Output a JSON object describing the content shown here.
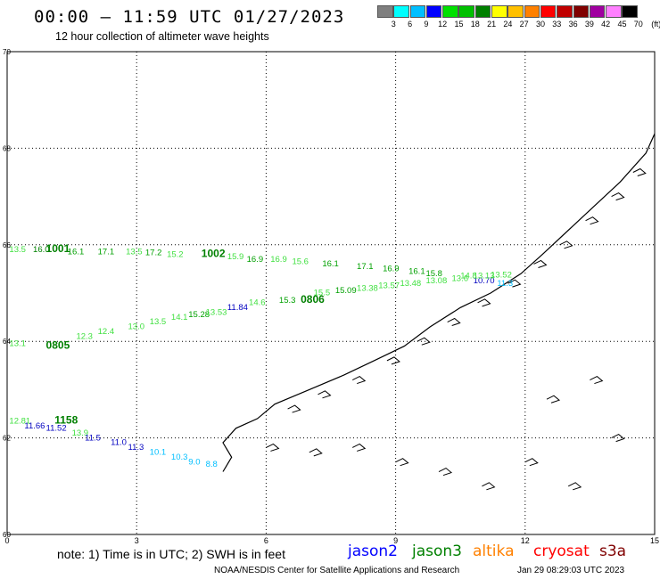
{
  "header": {
    "title": "00:00 – 11:59 UTC 01/27/2023",
    "subtitle": "12 hour collection of altimeter wave heights"
  },
  "colorbar": {
    "colors": [
      "#7f7f7f",
      "#00ffff",
      "#00bfff",
      "#0000ff",
      "#00e000",
      "#00c000",
      "#008000",
      "#ffff00",
      "#ffc000",
      "#ff8000",
      "#ff0000",
      "#c00000",
      "#800000",
      "#a000a0",
      "#ff80ff",
      "#000000"
    ],
    "labels": [
      "3",
      "6",
      "9",
      "12",
      "15",
      "18",
      "21",
      "24",
      "27",
      "30",
      "33",
      "36",
      "39",
      "42",
      "45",
      "70"
    ],
    "unit": "(ft)"
  },
  "axes": {
    "x_ticks": [
      "0",
      "3",
      "6",
      "9",
      "12",
      "15"
    ],
    "y_ticks": [
      "70",
      "68",
      "66",
      "64",
      "62",
      "60"
    ]
  },
  "chart_data": {
    "type": "scatter",
    "xlim": [
      0,
      15
    ],
    "ylim": [
      60,
      70
    ],
    "grid": true,
    "tracks": [
      {
        "name": "track-1",
        "passes": [
          "1001",
          "1002"
        ],
        "labels": [
          {
            "lon": 0.05,
            "lat": 65.85,
            "text": "13.5",
            "color": "#40e040"
          },
          {
            "lon": 0.6,
            "lat": 65.85,
            "text": "16.0",
            "color": "#008000"
          },
          {
            "lon": 0.9,
            "lat": 65.85,
            "text": "1001",
            "color": "#008000"
          },
          {
            "lon": 1.4,
            "lat": 65.8,
            "text": "16.1",
            "color": "#00a000"
          },
          {
            "lon": 2.1,
            "lat": 65.8,
            "text": "17.1",
            "color": "#00a000"
          },
          {
            "lon": 2.75,
            "lat": 65.8,
            "text": "13.5",
            "color": "#40e040"
          },
          {
            "lon": 3.2,
            "lat": 65.78,
            "text": "17.2",
            "color": "#00a000"
          },
          {
            "lon": 3.7,
            "lat": 65.75,
            "text": "15.2",
            "color": "#40e040"
          },
          {
            "lon": 4.5,
            "lat": 65.75,
            "text": "1002",
            "color": "#008000"
          },
          {
            "lon": 5.1,
            "lat": 65.7,
            "text": "15.9",
            "color": "#40e040"
          },
          {
            "lon": 5.55,
            "lat": 65.65,
            "text": "16.9",
            "color": "#00a000"
          },
          {
            "lon": 6.1,
            "lat": 65.65,
            "text": "16.9",
            "color": "#40e040"
          },
          {
            "lon": 6.6,
            "lat": 65.6,
            "text": "15.6",
            "color": "#40e040"
          },
          {
            "lon": 7.3,
            "lat": 65.55,
            "text": "16.1",
            "color": "#00a000"
          },
          {
            "lon": 8.1,
            "lat": 65.5,
            "text": "17.1",
            "color": "#00a000"
          },
          {
            "lon": 8.7,
            "lat": 65.45,
            "text": "16.9",
            "color": "#00a000"
          },
          {
            "lon": 9.3,
            "lat": 65.4,
            "text": "16.1",
            "color": "#00a000"
          },
          {
            "lon": 9.7,
            "lat": 65.35,
            "text": "15.8",
            "color": "#00a000"
          },
          {
            "lon": 10.5,
            "lat": 65.3,
            "text": "14.8",
            "color": "#40e040"
          },
          {
            "lon": 10.8,
            "lat": 65.2,
            "text": "10.70",
            "color": "#0000c0"
          },
          {
            "lon": 11.35,
            "lat": 65.15,
            "text": "11.3",
            "color": "#00bfff"
          }
        ]
      },
      {
        "name": "track-2",
        "passes": [
          "0805",
          "0806"
        ],
        "labels": [
          {
            "lon": 0.05,
            "lat": 63.9,
            "text": "13.1",
            "color": "#40e040"
          },
          {
            "lon": 0.9,
            "lat": 63.85,
            "text": "0805",
            "color": "#008000"
          },
          {
            "lon": 1.6,
            "lat": 64.05,
            "text": "12.3",
            "color": "#40e040"
          },
          {
            "lon": 2.1,
            "lat": 64.15,
            "text": "12.4",
            "color": "#40e040"
          },
          {
            "lon": 2.8,
            "lat": 64.25,
            "text": "13.0",
            "color": "#40e040"
          },
          {
            "lon": 3.3,
            "lat": 64.35,
            "text": "13.5",
            "color": "#40e040"
          },
          {
            "lon": 3.8,
            "lat": 64.45,
            "text": "14.1",
            "color": "#40e040"
          },
          {
            "lon": 4.2,
            "lat": 64.5,
            "text": "15.28",
            "color": "#00a000"
          },
          {
            "lon": 4.6,
            "lat": 64.55,
            "text": "13.53",
            "color": "#40e040"
          },
          {
            "lon": 5.1,
            "lat": 64.65,
            "text": "11.84",
            "color": "#0000c0"
          },
          {
            "lon": 5.6,
            "lat": 64.75,
            "text": "14.6",
            "color": "#40e040"
          },
          {
            "lon": 6.3,
            "lat": 64.8,
            "text": "15.3",
            "color": "#00a000"
          },
          {
            "lon": 6.8,
            "lat": 64.8,
            "text": "0806",
            "color": "#008000"
          },
          {
            "lon": 7.1,
            "lat": 64.95,
            "text": "15.5",
            "color": "#40e040"
          },
          {
            "lon": 7.6,
            "lat": 65.0,
            "text": "15.09",
            "color": "#00a000"
          },
          {
            "lon": 8.1,
            "lat": 65.05,
            "text": "13.38",
            "color": "#40e040"
          },
          {
            "lon": 8.6,
            "lat": 65.1,
            "text": "13.57",
            "color": "#40e040"
          },
          {
            "lon": 9.1,
            "lat": 65.15,
            "text": "13.48",
            "color": "#40e040"
          },
          {
            "lon": 9.7,
            "lat": 65.2,
            "text": "13.08",
            "color": "#40e040"
          },
          {
            "lon": 10.3,
            "lat": 65.25,
            "text": "13.6",
            "color": "#40e040"
          },
          {
            "lon": 10.8,
            "lat": 65.3,
            "text": "13.13",
            "color": "#40e040"
          },
          {
            "lon": 11.2,
            "lat": 65.32,
            "text": "13.52",
            "color": "#40e040"
          }
        ]
      },
      {
        "name": "track-3",
        "passes": [
          "1158"
        ],
        "labels": [
          {
            "lon": 0.05,
            "lat": 62.3,
            "text": "12.81",
            "color": "#40e040"
          },
          {
            "lon": 0.4,
            "lat": 62.2,
            "text": "11.66",
            "color": "#0000c0"
          },
          {
            "lon": 1.1,
            "lat": 62.3,
            "text": "1158",
            "color": "#008000"
          },
          {
            "lon": 0.9,
            "lat": 62.15,
            "text": "11.52",
            "color": "#0000c0"
          },
          {
            "lon": 1.5,
            "lat": 62.05,
            "text": "13.9",
            "color": "#40e040"
          },
          {
            "lon": 1.8,
            "lat": 61.95,
            "text": "11.5",
            "color": "#0000c0"
          },
          {
            "lon": 2.4,
            "lat": 61.85,
            "text": "11.0",
            "color": "#0000c0"
          },
          {
            "lon": 2.8,
            "lat": 61.75,
            "text": "11.3",
            "color": "#0000c0"
          },
          {
            "lon": 3.3,
            "lat": 61.65,
            "text": "10.1",
            "color": "#00bfff"
          },
          {
            "lon": 3.8,
            "lat": 61.55,
            "text": "10.3",
            "color": "#00bfff"
          },
          {
            "lon": 4.2,
            "lat": 61.45,
            "text": "9.0",
            "color": "#00bfff"
          },
          {
            "lon": 4.6,
            "lat": 61.4,
            "text": "8.8",
            "color": "#00bfff"
          }
        ]
      }
    ]
  },
  "note": {
    "text": "note:  1) Time is in UTC; 2) SWH is in feet"
  },
  "satellites": [
    {
      "name": "jason2",
      "color": "#0000ff"
    },
    {
      "name": "jason3",
      "color": "#008000"
    },
    {
      "name": "altika",
      "color": "#ff8000"
    },
    {
      "name": "cryosat",
      "color": "#ff0000"
    },
    {
      "name": "s3a",
      "color": "#800000"
    }
  ],
  "footer": {
    "agency": "NOAA/NESDIS Center for Satellite Applications and Research",
    "timestamp": "Jan 29 08:29:03 UTC 2023"
  }
}
